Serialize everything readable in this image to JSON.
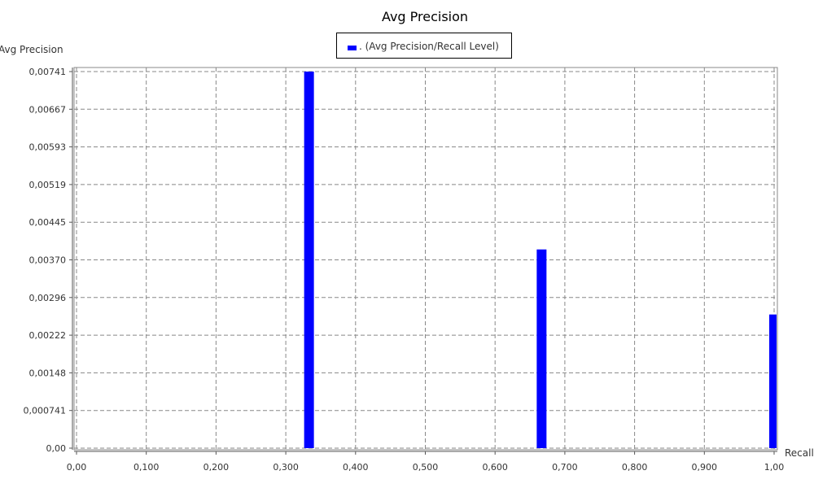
{
  "chart_data": {
    "type": "bar",
    "title": "Avg Precision",
    "xlabel": "Recall",
    "ylabel": "Avg Precision",
    "legend": {
      "position": "top-center",
      "entries": [
        ". (Avg Precision/Recall Level)"
      ]
    },
    "grid": true,
    "xlim": [
      0,
      1.0
    ],
    "ylim": [
      0,
      0.00741
    ],
    "x_ticks": [
      "0,00",
      "0,100",
      "0,200",
      "0,300",
      "0,400",
      "0,500",
      "0,600",
      "0,700",
      "0,800",
      "0,900",
      "1,00"
    ],
    "y_ticks": [
      "0,00",
      "0,000741",
      "0,00148",
      "0,00222",
      "0,00296",
      "0,00370",
      "0,00445",
      "0,00519",
      "0,00593",
      "0,00667",
      "0,00741"
    ],
    "series": [
      {
        "name": ". (Avg Precision/Recall Level)",
        "color": "#0000ff",
        "x": [
          0.3333,
          0.6667,
          1.0
        ],
        "values": [
          0.00741,
          0.00391,
          0.00263
        ]
      }
    ]
  }
}
